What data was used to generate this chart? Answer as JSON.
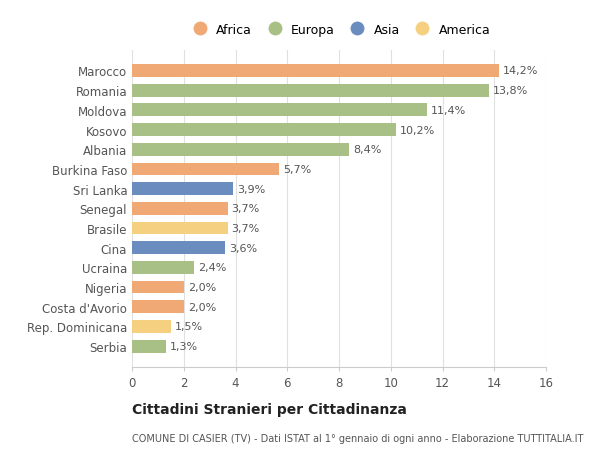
{
  "countries": [
    "Marocco",
    "Romania",
    "Moldova",
    "Kosovo",
    "Albania",
    "Burkina Faso",
    "Sri Lanka",
    "Senegal",
    "Brasile",
    "Cina",
    "Ucraina",
    "Nigeria",
    "Costa d'Avorio",
    "Rep. Dominicana",
    "Serbia"
  ],
  "values": [
    14.2,
    13.8,
    11.4,
    10.2,
    8.4,
    5.7,
    3.9,
    3.7,
    3.7,
    3.6,
    2.4,
    2.0,
    2.0,
    1.5,
    1.3
  ],
  "labels": [
    "14,2%",
    "13,8%",
    "11,4%",
    "10,2%",
    "8,4%",
    "5,7%",
    "3,9%",
    "3,7%",
    "3,7%",
    "3,6%",
    "2,4%",
    "2,0%",
    "2,0%",
    "1,5%",
    "1,3%"
  ],
  "continents": [
    "Africa",
    "Europa",
    "Europa",
    "Europa",
    "Europa",
    "Africa",
    "Asia",
    "Africa",
    "America",
    "Asia",
    "Europa",
    "Africa",
    "Africa",
    "America",
    "Europa"
  ],
  "colors": {
    "Africa": "#F0A875",
    "Europa": "#A8BF85",
    "Asia": "#6B8CBE",
    "America": "#F5D080"
  },
  "legend_order": [
    "Africa",
    "Europa",
    "Asia",
    "America"
  ],
  "xlim": [
    0,
    16
  ],
  "xticks": [
    0,
    2,
    4,
    6,
    8,
    10,
    12,
    14,
    16
  ],
  "title": "Cittadini Stranieri per Cittadinanza",
  "subtitle": "COMUNE DI CASIER (TV) - Dati ISTAT al 1° gennaio di ogni anno - Elaborazione TUTTITALIA.IT",
  "bg_color": "#ffffff",
  "grid_color": "#e0e0e0"
}
